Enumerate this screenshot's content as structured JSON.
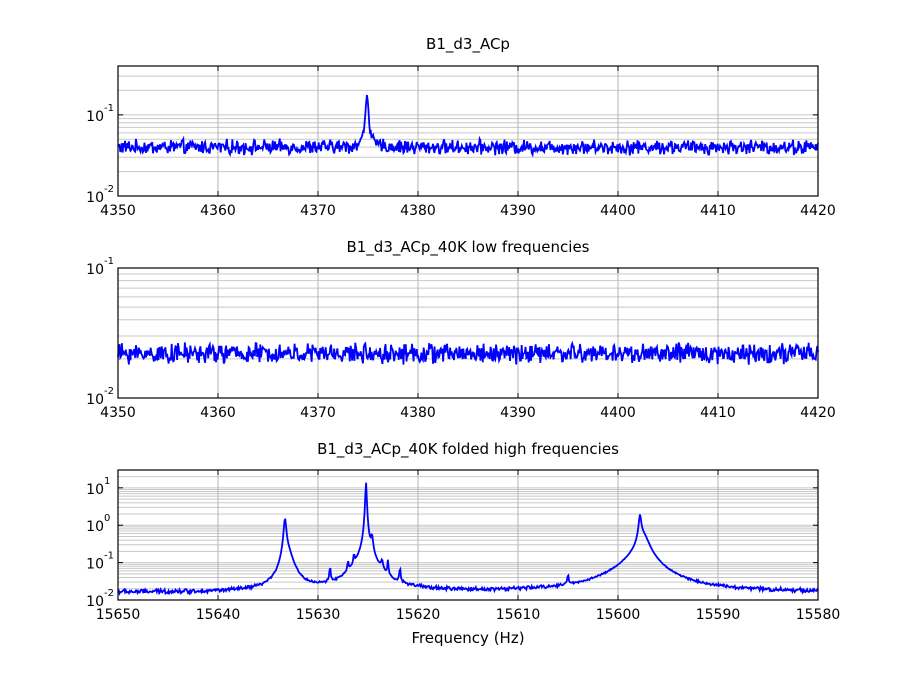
{
  "chart_data": [
    {
      "type": "line",
      "title": "B1_d3_ACp",
      "xlabel": "",
      "ylabel": "",
      "xlim": [
        4350,
        4420
      ],
      "x_reversed": false,
      "y_scale": "log",
      "ylim": [
        0.01,
        0.4
      ],
      "grid": true,
      "xticks": [
        "4350",
        "4360",
        "4370",
        "4380",
        "4390",
        "4400",
        "4410",
        "4420"
      ],
      "yticks": [
        {
          "base": "10",
          "exp": "-2",
          "value": 0.01
        },
        {
          "base": "10",
          "exp": "-1",
          "value": 0.1
        }
      ],
      "series_color": "#0000ff",
      "baseline": 0.04,
      "noise_amplitude": 0.07,
      "peaks": [
        {
          "x": 4374.9,
          "y": 0.14,
          "width": 0.15
        }
      ]
    },
    {
      "type": "line",
      "title": "B1_d3_ACp_40K low frequencies",
      "xlabel": "",
      "ylabel": "",
      "xlim": [
        4350,
        4420
      ],
      "x_reversed": false,
      "y_scale": "log",
      "ylim": [
        0.01,
        0.1
      ],
      "grid": true,
      "xticks": [
        "4350",
        "4360",
        "4370",
        "4380",
        "4390",
        "4400",
        "4410",
        "4420"
      ],
      "yticks": [
        {
          "base": "10",
          "exp": "-2",
          "value": 0.01
        },
        {
          "base": "10",
          "exp": "-1",
          "value": 0.1
        }
      ],
      "series_color": "#0000ff",
      "baseline": 0.022,
      "noise_amplitude": 0.06,
      "peaks": []
    },
    {
      "type": "line",
      "title": "B1_d3_ACp_40K folded high frequencies",
      "xlabel": "Frequency (Hz)",
      "ylabel": "",
      "xlim": [
        15650,
        15580
      ],
      "x_reversed": true,
      "y_scale": "log",
      "ylim": [
        0.01,
        30
      ],
      "grid": true,
      "xticks": [
        "15650",
        "15640",
        "15630",
        "15620",
        "15610",
        "15600",
        "15590",
        "15580"
      ],
      "yticks": [
        {
          "base": "10",
          "exp": "-2",
          "value": 0.01
        },
        {
          "base": "10",
          "exp": "-1",
          "value": 0.1
        },
        {
          "base": "10",
          "exp": "0",
          "value": 1
        },
        {
          "base": "10",
          "exp": "1",
          "value": 10
        }
      ],
      "series_color": "#0000ff",
      "baseline": 0.016,
      "noise_amplitude": 0.05,
      "peaks": [
        {
          "x": 15633.3,
          "y": 1.4,
          "width": 0.12
        },
        {
          "x": 15633.0,
          "y": 0.15,
          "width": 0.5
        },
        {
          "x": 15628.8,
          "y": 0.05,
          "width": 0.06
        },
        {
          "x": 15627.0,
          "y": 0.05,
          "width": 0.06
        },
        {
          "x": 15626.4,
          "y": 0.08,
          "width": 0.06
        },
        {
          "x": 15625.2,
          "y": 14,
          "width": 0.06
        },
        {
          "x": 15625.2,
          "y": 0.12,
          "width": 1.0
        },
        {
          "x": 15624.6,
          "y": 0.35,
          "width": 0.1
        },
        {
          "x": 15623.6,
          "y": 0.05,
          "width": 0.1
        },
        {
          "x": 15623.0,
          "y": 0.07,
          "width": 0.05
        },
        {
          "x": 15621.8,
          "y": 0.05,
          "width": 0.05
        },
        {
          "x": 15605.0,
          "y": 0.025,
          "width": 0.06
        },
        {
          "x": 15597.8,
          "y": 1.5,
          "width": 0.12
        },
        {
          "x": 15597.5,
          "y": 0.45,
          "width": 0.6
        },
        {
          "x": 15598.0,
          "y": 0.08,
          "width": 2.2
        }
      ]
    }
  ]
}
